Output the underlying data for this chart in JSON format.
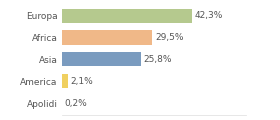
{
  "categories": [
    "Europa",
    "Africa",
    "Asia",
    "America",
    "Apolidi"
  ],
  "values": [
    42.3,
    29.5,
    25.8,
    2.1,
    0.2
  ],
  "labels": [
    "42,3%",
    "29,5%",
    "25,8%",
    "2,1%",
    "0,2%"
  ],
  "bar_colors": [
    "#b5c98e",
    "#f0b888",
    "#7a9bbf",
    "#f0d060",
    "#cccccc"
  ],
  "background_color": "#ffffff",
  "xlim": [
    0,
    60
  ],
  "label_fontsize": 6.5,
  "tick_fontsize": 6.5
}
